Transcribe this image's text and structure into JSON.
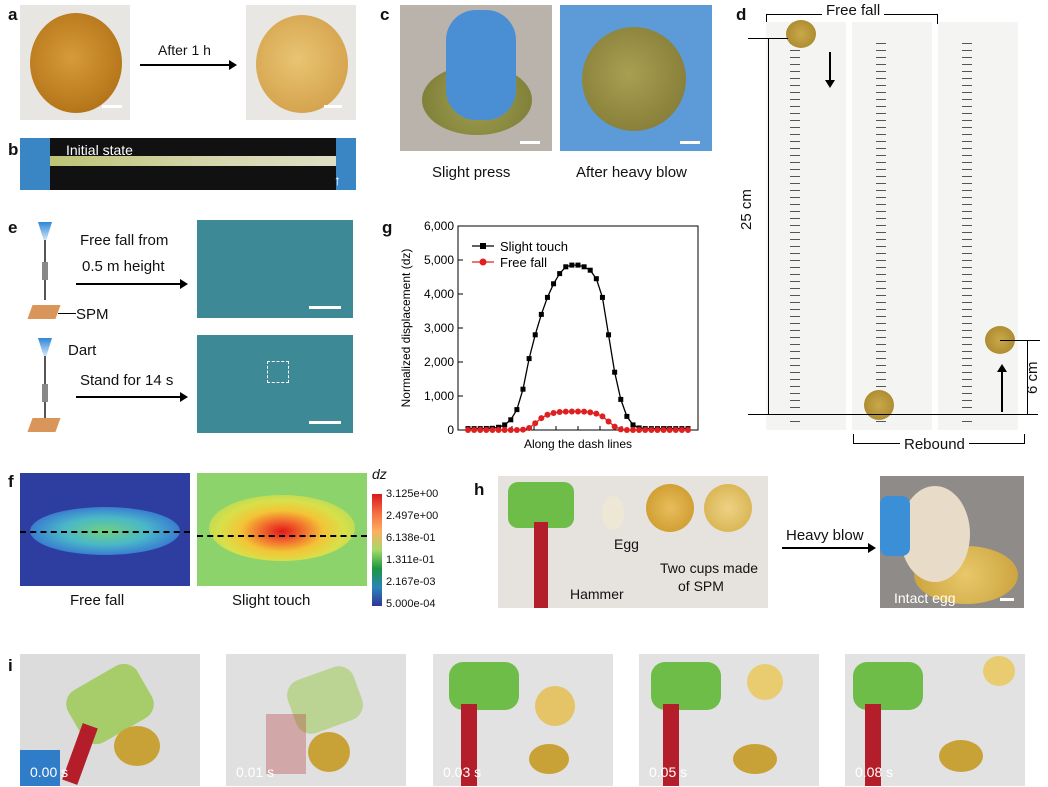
{
  "panels": {
    "a": {
      "label": "a",
      "arrow_text": "After 1 h"
    },
    "b": {
      "label": "b",
      "initial_state": "Initial state"
    },
    "c": {
      "label": "c",
      "caption_left": "Slight press",
      "caption_right": "After heavy blow"
    },
    "d": {
      "label": "d",
      "free_fall": "Free fall",
      "rebound": "Rebound",
      "height_25": "25 cm",
      "height_6": "6 cm"
    },
    "e": {
      "label": "e",
      "free_fall_line1": "Free fall from",
      "free_fall_line2": "0.5 m height",
      "spm": "SPM",
      "dart": "Dart",
      "stand": "Stand for 14 s"
    },
    "f": {
      "label": "f",
      "caption_left": "Free fall",
      "caption_right": "Slight touch",
      "colorbar_title": "dz",
      "colorbar_ticks": [
        "3.125e+00",
        "2.497e+00",
        "6.138e-01",
        "1.311e-01",
        "2.167e-03",
        "5.000e-04"
      ]
    },
    "g": {
      "label": "g"
    },
    "h": {
      "label": "h",
      "egg": "Egg",
      "cups_line1": "Two cups made",
      "cups_line2": "of SPM",
      "hammer": "Hammer",
      "heavy_blow": "Heavy blow",
      "intact_egg": "Intact egg"
    },
    "i": {
      "label": "i",
      "times": [
        "0.00 s",
        "0.01 s",
        "0.03 s",
        "0.05 s",
        "0.08 s"
      ]
    }
  },
  "chart_data": {
    "type": "line",
    "xlabel": "Along the dash lines",
    "ylabel": "Normalized displacement (dz)",
    "ylim": [
      0,
      6000
    ],
    "yticks": [
      "0",
      "1,000",
      "2,000",
      "3,000",
      "4,000",
      "5,000",
      "6,000"
    ],
    "x": [
      0,
      1,
      2,
      3,
      4,
      5,
      6,
      7,
      8,
      9,
      10,
      11,
      12,
      13,
      14,
      15,
      16,
      17,
      18,
      19,
      20,
      21,
      22,
      23,
      24,
      25,
      26,
      27,
      28,
      29,
      30,
      31,
      32,
      33,
      34,
      35,
      36
    ],
    "series": [
      {
        "name": "Slight touch",
        "color": "#000000",
        "marker": "square",
        "values": [
          40,
          40,
          40,
          45,
          50,
          80,
          150,
          300,
          600,
          1200,
          2100,
          2800,
          3400,
          3900,
          4300,
          4600,
          4800,
          4850,
          4850,
          4800,
          4700,
          4450,
          3900,
          2800,
          1700,
          900,
          400,
          150,
          60,
          40,
          40,
          40,
          40,
          40,
          40,
          40,
          40
        ]
      },
      {
        "name": "Free fall",
        "color": "#e02020",
        "marker": "circle",
        "values": [
          0,
          0,
          0,
          0,
          0,
          0,
          0,
          0,
          0,
          10,
          60,
          200,
          350,
          450,
          500,
          530,
          540,
          545,
          545,
          540,
          520,
          480,
          400,
          250,
          100,
          20,
          0,
          0,
          0,
          0,
          0,
          0,
          0,
          0,
          0,
          0,
          0
        ]
      }
    ]
  },
  "colors": {
    "colorbar": [
      "#d7191c",
      "#f46d43",
      "#fdae61",
      "#a6d96a",
      "#1a9641",
      "#2b83ba",
      "#313695"
    ]
  }
}
